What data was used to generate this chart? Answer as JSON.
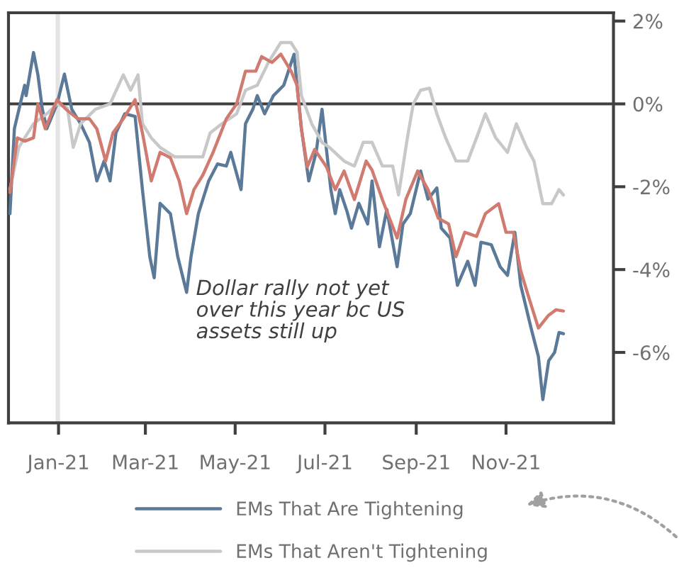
{
  "chart_data": {
    "type": "line",
    "annotations": [
      "Dollar rally not yet\nover this year bc US\nassets still up"
    ],
    "series": [
      {
        "name": "EMs That Are Tightening",
        "color": "#5b7a99",
        "x": [
          "2020-11-29",
          "2020-12-02",
          "2020-12-09",
          "2020-12-10",
          "2020-12-15",
          "2020-12-18",
          "2020-12-21",
          "2020-12-24",
          "2020-12-31",
          "2021-01-05",
          "2021-01-10",
          "2021-01-16",
          "2021-01-22",
          "2021-01-27",
          "2021-02-01",
          "2021-02-05",
          "2021-02-09",
          "2021-02-15",
          "2021-02-22",
          "2021-02-27",
          "2021-03-04",
          "2021-03-07",
          "2021-03-11",
          "2021-03-18",
          "2021-03-23",
          "2021-03-29",
          "2021-04-01",
          "2021-04-06",
          "2021-04-13",
          "2021-04-19",
          "2021-04-25",
          "2021-04-28",
          "2021-05-05",
          "2021-05-08",
          "2021-05-13",
          "2021-05-16",
          "2021-05-21",
          "2021-05-27",
          "2021-06-03",
          "2021-06-10",
          "2021-06-12",
          "2021-06-15",
          "2021-06-20",
          "2021-06-25",
          "2021-06-29",
          "2021-07-05",
          "2021-07-08",
          "2021-07-11",
          "2021-07-16",
          "2021-07-19",
          "2021-07-24",
          "2021-07-30",
          "2021-08-02",
          "2021-08-07",
          "2021-08-12",
          "2021-08-19",
          "2021-08-23",
          "2021-08-28",
          "2021-09-04",
          "2021-09-09",
          "2021-09-15",
          "2021-09-18",
          "2021-09-24",
          "2021-09-29",
          "2021-10-06",
          "2021-10-11",
          "2021-10-15",
          "2021-10-22",
          "2021-10-28",
          "2021-11-02",
          "2021-11-07",
          "2021-11-11",
          "2021-11-18",
          "2021-11-23",
          "2021-11-26",
          "2021-11-30",
          "2021-12-04",
          "2021-12-07",
          "2021-12-10"
        ],
        "values": [
          -2.65,
          -0.6,
          0.45,
          0.2,
          1.24,
          0.7,
          -0.13,
          -0.6,
          0,
          0.72,
          -0.13,
          -0.48,
          -0.93,
          -1.86,
          -1.38,
          -1.86,
          -0.7,
          -0.24,
          -0.3,
          -2.07,
          -3.69,
          -4.2,
          -2.4,
          -2.65,
          -3.69,
          -4.55,
          -3.69,
          -2.65,
          -1.86,
          -1.45,
          -1.5,
          -1.17,
          -2.07,
          -0.48,
          -0.13,
          0.2,
          -0.24,
          0.2,
          0.45,
          1.2,
          0.45,
          -0.6,
          -1.86,
          -1.17,
          -0.13,
          -2.07,
          -2.65,
          -2.07,
          -2.6,
          -3.0,
          -2.4,
          -2.9,
          -1.86,
          -3.45,
          -2.55,
          -3.93,
          -2.9,
          -2.65,
          -1.62,
          -2.3,
          -2.03,
          -3.0,
          -3.24,
          -4.38,
          -3.8,
          -4.38,
          -3.34,
          -3.4,
          -3.93,
          -4.14,
          -3.1,
          -4.38,
          -5.41,
          -6.1,
          -7.14,
          -6.2,
          -6.0,
          -5.52,
          -5.55
        ]
      },
      {
        "name": "EMs That Aren't Tightening",
        "color": "#c8c8c8",
        "x": [
          "2020-11-29",
          "2020-12-05",
          "2020-12-15",
          "2020-12-24",
          "2020-12-31",
          "2021-01-07",
          "2021-01-11",
          "2021-01-16",
          "2021-01-26",
          "2021-02-05",
          "2021-02-14",
          "2021-02-19",
          "2021-02-24",
          "2021-02-27",
          "2021-03-05",
          "2021-03-11",
          "2021-03-21",
          "2021-03-30",
          "2021-04-09",
          "2021-04-14",
          "2021-04-22",
          "2021-05-02",
          "2021-05-08",
          "2021-05-16",
          "2021-05-24",
          "2021-06-01",
          "2021-06-08",
          "2021-06-12",
          "2021-06-15",
          "2021-06-22",
          "2021-06-29",
          "2021-07-04",
          "2021-07-14",
          "2021-07-21",
          "2021-07-27",
          "2021-08-02",
          "2021-08-09",
          "2021-08-16",
          "2021-08-20",
          "2021-08-26",
          "2021-08-30",
          "2021-09-04",
          "2021-09-10",
          "2021-09-15",
          "2021-09-21",
          "2021-09-28",
          "2021-10-06",
          "2021-10-12",
          "2021-10-18",
          "2021-10-25",
          "2021-11-02",
          "2021-11-08",
          "2021-11-15",
          "2021-11-20",
          "2021-11-26",
          "2021-12-02",
          "2021-12-07",
          "2021-12-10"
        ],
        "values": [
          -2.07,
          -1.05,
          -0.48,
          -0.24,
          0,
          -0.1,
          -1.05,
          -0.48,
          -0.13,
          0,
          0.7,
          0.33,
          0.7,
          -0.48,
          -0.82,
          -1.05,
          -1.28,
          -1.28,
          -1.28,
          -0.7,
          -0.48,
          -0.24,
          0.33,
          0.45,
          1.03,
          1.48,
          1.48,
          1.25,
          0.2,
          -0.48,
          -0.93,
          -1.05,
          -1.38,
          -1.5,
          -0.93,
          -0.93,
          -1.5,
          -1.5,
          -2.2,
          -0.82,
          0,
          0.33,
          0.38,
          -0.24,
          -0.82,
          -1.38,
          -1.38,
          -0.82,
          -0.24,
          -0.82,
          -1.17,
          -0.48,
          -1.05,
          -1.38,
          -2.41,
          -2.41,
          -2.07,
          -2.2
        ]
      },
      {
        "color": "#d07a70",
        "x": [
          "2020-11-29",
          "2020-12-04",
          "2020-12-09",
          "2020-12-15",
          "2020-12-18",
          "2020-12-23",
          "2020-12-31",
          "2021-01-06",
          "2021-01-14",
          "2021-01-22",
          "2021-01-27",
          "2021-02-02",
          "2021-02-07",
          "2021-02-14",
          "2021-02-22",
          "2021-02-27",
          "2021-03-05",
          "2021-03-11",
          "2021-03-18",
          "2021-03-24",
          "2021-03-29",
          "2021-04-03",
          "2021-04-09",
          "2021-04-16",
          "2021-04-25",
          "2021-05-02",
          "2021-05-08",
          "2021-05-15",
          "2021-05-19",
          "2021-05-26",
          "2021-06-01",
          "2021-06-08",
          "2021-06-12",
          "2021-06-15",
          "2021-06-19",
          "2021-06-24",
          "2021-07-02",
          "2021-07-08",
          "2021-07-14",
          "2021-07-21",
          "2021-07-29",
          "2021-08-02",
          "2021-08-09",
          "2021-08-19",
          "2021-08-25",
          "2021-09-02",
          "2021-09-09",
          "2021-09-16",
          "2021-09-23",
          "2021-09-28",
          "2021-10-04",
          "2021-10-12",
          "2021-10-18",
          "2021-10-27",
          "2021-11-01",
          "2021-11-06",
          "2021-11-11",
          "2021-11-16",
          "2021-11-23",
          "2021-11-30",
          "2021-12-05",
          "2021-12-10"
        ],
        "values": [
          -2.14,
          -0.82,
          -0.9,
          -0.82,
          0,
          -0.6,
          0.1,
          -0.13,
          -0.36,
          -0.36,
          -0.6,
          -1.38,
          -0.7,
          -0.36,
          0.1,
          -0.7,
          -1.86,
          -1.17,
          -1.3,
          -1.86,
          -2.65,
          -2.07,
          -1.72,
          -1.17,
          -0.36,
          0,
          0.79,
          0.79,
          1.14,
          1.0,
          1.2,
          0.79,
          0.45,
          -0.6,
          -1.52,
          -1.1,
          -1.52,
          -2.07,
          -1.62,
          -2.31,
          -1.38,
          -1.6,
          -2.31,
          -3.24,
          -2.3,
          -1.62,
          -2.07,
          -2.76,
          -2.9,
          -3.69,
          -3.1,
          -3.2,
          -2.65,
          -2.41,
          -3.1,
          -3.1,
          -4.03,
          -4.62,
          -5.41,
          -5.1,
          -4.97,
          -5.0
        ]
      }
    ],
    "xlim": [
      "2020-11-28",
      "2022-01-13"
    ],
    "xticks": [
      {
        "value": "2021-01-01",
        "label": "Jan-21"
      },
      {
        "value": "2021-03-01",
        "label": "Mar-21"
      },
      {
        "value": "2021-05-01",
        "label": "May-21"
      },
      {
        "value": "2021-07-01",
        "label": "Jul-21"
      },
      {
        "value": "2021-09-01",
        "label": "Sep-21"
      },
      {
        "value": "2021-11-01",
        "label": "Nov-21"
      }
    ],
    "ylim": [
      -7.7,
      2.2
    ],
    "yticks": [
      {
        "value": 2,
        "label": "2%"
      },
      {
        "value": 0,
        "label": "0%"
      },
      {
        "value": -2,
        "label": "-2%"
      },
      {
        "value": -4,
        "label": "-4%"
      },
      {
        "value": -6,
        "label": "-6%"
      }
    ],
    "ref_lines": [
      {
        "axis": "y",
        "value": 0,
        "color": "#404040"
      }
    ],
    "bands": [
      {
        "axis": "x",
        "from": "2020-12-30",
        "to": "2021-01-02",
        "color": "#e4e4e4"
      }
    ],
    "grid": false,
    "legend": "bottom",
    "marker": "none",
    "line_style": "solid"
  }
}
